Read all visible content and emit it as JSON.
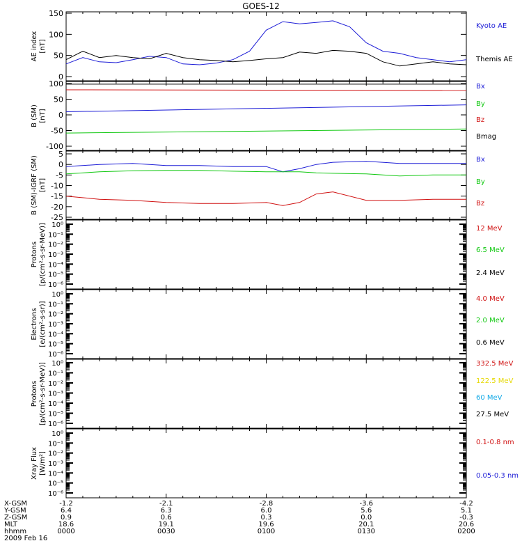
{
  "title": "GOES-12",
  "colors": {
    "black": "#000000",
    "blue": "#1c1cd6",
    "red": "#d01010",
    "green": "#10c810",
    "yellow": "#e6d800",
    "cyan": "#10a8e6"
  },
  "chart_data": [
    {
      "type": "line",
      "ylabel": [
        "AE index",
        "[nT]"
      ],
      "ylim": [
        0,
        150
      ],
      "yticks": [
        0,
        50,
        100,
        150
      ],
      "x": [
        "0000",
        "0005",
        "0010",
        "0015",
        "0020",
        "0025",
        "0030",
        "0035",
        "0040",
        "0045",
        "0050",
        "0055",
        "0100",
        "0105",
        "0110",
        "0115",
        "0120",
        "0125",
        "0130",
        "0135",
        "0140",
        "0145",
        "0150",
        "0155",
        "0200"
      ],
      "series": [
        {
          "name": "Kyoto AE",
          "color": "blue",
          "values": [
            30,
            45,
            35,
            33,
            40,
            48,
            45,
            30,
            28,
            32,
            40,
            60,
            110,
            130,
            125,
            128,
            132,
            118,
            80,
            60,
            55,
            45,
            40,
            35,
            40
          ]
        },
        {
          "name": "Themis AE",
          "color": "black",
          "values": [
            40,
            60,
            45,
            50,
            45,
            42,
            55,
            45,
            40,
            38,
            35,
            38,
            42,
            45,
            58,
            55,
            62,
            60,
            55,
            35,
            25,
            30,
            35,
            30,
            28
          ]
        }
      ]
    },
    {
      "type": "line",
      "ylabel": [
        "B (SM)",
        "[nT]"
      ],
      "ylim": [
        -100,
        100
      ],
      "yticks": [
        -100,
        -50,
        0,
        50,
        100
      ],
      "x": [
        "0000",
        "0200"
      ],
      "series": [
        {
          "name": "Bx",
          "color": "blue",
          "values": [
            10,
            32
          ]
        },
        {
          "name": "By",
          "color": "green",
          "values": [
            -58,
            -45
          ]
        },
        {
          "name": "Bz",
          "color": "red",
          "values": [
            80,
            78
          ]
        },
        {
          "name": "Bmag",
          "color": "black",
          "values": [
            98,
            98
          ]
        }
      ]
    },
    {
      "type": "line",
      "ylabel": [
        "B (SM)-IGRF (SM)",
        "[nT]"
      ],
      "ylim": [
        -25,
        5
      ],
      "yticks": [
        -25,
        -20,
        -15,
        -10,
        -5,
        0,
        5
      ],
      "x": [
        "0000",
        "0010",
        "0020",
        "0030",
        "0040",
        "0050",
        "0100",
        "0105",
        "0110",
        "0115",
        "0120",
        "0130",
        "0140",
        "0150",
        "0200"
      ],
      "series": [
        {
          "name": "Bx",
          "color": "blue",
          "values": [
            -1,
            0,
            0.5,
            -0.5,
            -0.5,
            -1,
            -1,
            -3.5,
            -2,
            0,
            1,
            1.5,
            0.5,
            0.5,
            0.5
          ]
        },
        {
          "name": "By",
          "color": "green",
          "values": [
            -4.5,
            -3.5,
            -3,
            -2.8,
            -2.8,
            -3.2,
            -3.5,
            -3.5,
            -3.5,
            -4,
            -4.2,
            -4.5,
            -5.5,
            -5,
            -5
          ]
        },
        {
          "name": "Bz",
          "color": "red",
          "values": [
            -15,
            -16.5,
            -17,
            -18,
            -18.5,
            -18.5,
            -18,
            -19.5,
            -18,
            -14,
            -13,
            -17,
            -17,
            -16.5,
            -16.5
          ]
        }
      ]
    },
    {
      "type": "line",
      "ylabel": [
        "Protons",
        "[p/(cm²-s-sr-MeV)]"
      ],
      "yscale": "log",
      "ylim": [
        1e-06,
        1
      ],
      "ytick_labels": [
        "10⁰",
        "10⁻¹",
        "10⁻²",
        "10⁻³",
        "10⁻⁴",
        "10⁻⁵",
        "10⁻⁶"
      ],
      "series": [
        {
          "name": "12 MeV",
          "color": "red",
          "values": []
        },
        {
          "name": "6.5 MeV",
          "color": "green",
          "values": []
        },
        {
          "name": "2.4 MeV",
          "color": "black",
          "values": []
        }
      ]
    },
    {
      "type": "line",
      "ylabel": [
        "Electrons",
        "[e/(cm²-s-sr)]"
      ],
      "yscale": "log",
      "ylim": [
        1e-06,
        1
      ],
      "ytick_labels": [
        "10⁰",
        "10⁻¹",
        "10⁻²",
        "10⁻³",
        "10⁻⁴",
        "10⁻⁵",
        "10⁻⁶"
      ],
      "series": [
        {
          "name": "4.0 MeV",
          "color": "red",
          "values": []
        },
        {
          "name": "2.0 MeV",
          "color": "green",
          "values": []
        },
        {
          "name": "0.6 MeV",
          "color": "black",
          "values": []
        }
      ]
    },
    {
      "type": "line",
      "ylabel": [
        "Protons",
        "[p/(cm²-s-sr-MeV)]"
      ],
      "yscale": "log",
      "ylim": [
        1e-06,
        1
      ],
      "ytick_labels": [
        "10⁰",
        "10⁻¹",
        "10⁻²",
        "10⁻³",
        "10⁻⁴",
        "10⁻⁵",
        "10⁻⁶"
      ],
      "series": [
        {
          "name": "332.5 MeV",
          "color": "red",
          "values": []
        },
        {
          "name": "122.5 MeV",
          "color": "yellow",
          "values": []
        },
        {
          "name": "60 MeV",
          "color": "cyan",
          "values": []
        },
        {
          "name": "27.5 MeV",
          "color": "black",
          "values": []
        }
      ]
    },
    {
      "type": "line",
      "ylabel": [
        "Xray Flux",
        "[W/m²]"
      ],
      "yscale": "log",
      "ylim": [
        1e-06,
        1
      ],
      "ytick_labels": [
        "10⁰",
        "10⁻¹",
        "10⁻²",
        "10⁻³",
        "10⁻⁴",
        "10⁻⁵",
        "10⁻⁶"
      ],
      "series": [
        {
          "name": "0.1-0.8 nm",
          "color": "red",
          "values": []
        },
        {
          "name": "0.05-0.3 nm",
          "color": "blue",
          "values": []
        }
      ]
    }
  ],
  "ephemeris": {
    "rows": [
      {
        "label": "X-GSM",
        "values": [
          "-1.2",
          "-2.1",
          "-2.8",
          "-3.6",
          "-4.2"
        ]
      },
      {
        "label": "Y-GSM",
        "values": [
          "6.4",
          "6.3",
          "6.0",
          "5.6",
          "5.1"
        ]
      },
      {
        "label": "Z-GSM",
        "values": [
          "0.9",
          "0.6",
          "0.3",
          "0.0",
          "-0.3"
        ]
      },
      {
        "label": "MLT",
        "values": [
          "18.6",
          "19.1",
          "19.6",
          "20.1",
          "20.6"
        ]
      },
      {
        "label": "hhmm",
        "values": [
          "0000",
          "0030",
          "0100",
          "0130",
          "0200"
        ]
      }
    ],
    "date": "2009 Feb 16"
  }
}
